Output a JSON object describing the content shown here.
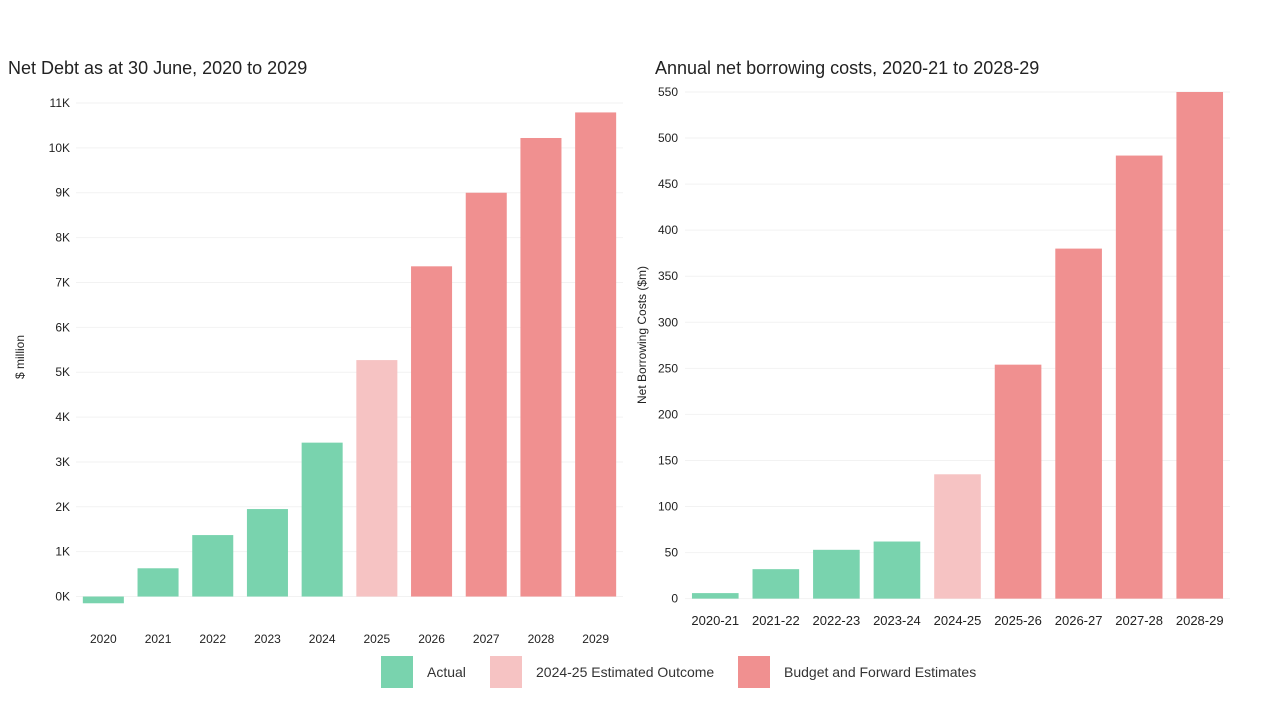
{
  "chart_data": [
    {
      "type": "bar",
      "title": "Net Debt as at 30 June, 2020 to 2029",
      "ylabel": "$ million",
      "xlabel": "",
      "ylim": [
        -300,
        11000
      ],
      "yticks": [
        0,
        1000,
        2000,
        3000,
        4000,
        5000,
        6000,
        7000,
        8000,
        9000,
        10000,
        11000
      ],
      "ytick_labels": [
        "0K",
        "1K",
        "2K",
        "3K",
        "4K",
        "5K",
        "6K",
        "7K",
        "8K",
        "9K",
        "10K",
        "11K"
      ],
      "categories": [
        "2020",
        "2021",
        "2022",
        "2023",
        "2024",
        "2025",
        "2026",
        "2027",
        "2028",
        "2029"
      ],
      "values": [
        -150,
        630,
        1370,
        1950,
        3430,
        5270,
        7360,
        9000,
        10220,
        10790
      ],
      "groups": [
        "Actual",
        "Actual",
        "Actual",
        "Actual",
        "Actual",
        "Estimated",
        "Budget",
        "Budget",
        "Budget",
        "Budget"
      ],
      "grid": true
    },
    {
      "type": "bar",
      "title": "Annual net borrowing costs, 2020-21 to 2028-29",
      "ylabel": "Net Borrowing Costs ($m)",
      "xlabel": "",
      "ylim": [
        -8,
        550
      ],
      "yticks": [
        0,
        50,
        100,
        150,
        200,
        250,
        300,
        350,
        400,
        450,
        500,
        550
      ],
      "ytick_labels": [
        "0",
        "50",
        "100",
        "150",
        "200",
        "250",
        "300",
        "350",
        "400",
        "450",
        "500",
        "550"
      ],
      "categories": [
        "2020-21",
        "2021-22",
        "2022-23",
        "2023-24",
        "2024-25",
        "2025-26",
        "2026-27",
        "2027-28",
        "2028-29"
      ],
      "values": [
        6,
        32,
        53,
        62,
        135,
        254,
        380,
        481,
        550
      ],
      "groups": [
        "Actual",
        "Actual",
        "Actual",
        "Actual",
        "Estimated",
        "Budget",
        "Budget",
        "Budget",
        "Budget"
      ],
      "grid": true
    }
  ],
  "legend": {
    "placement": "bottom-center",
    "items": [
      {
        "key": "Actual",
        "label": "Actual",
        "color": "#79d3ae"
      },
      {
        "key": "Estimated",
        "label": "2024-25 Estimated Outcome",
        "color": "#f6c3c3"
      },
      {
        "key": "Budget",
        "label": "Budget and Forward Estimates",
        "color": "#f09090"
      }
    ]
  },
  "colors": {
    "Actual": "#79d3ae",
    "Estimated": "#f6c3c3",
    "Budget": "#f09090",
    "grid": "#f2f2f2",
    "tick_text": "#222222"
  }
}
